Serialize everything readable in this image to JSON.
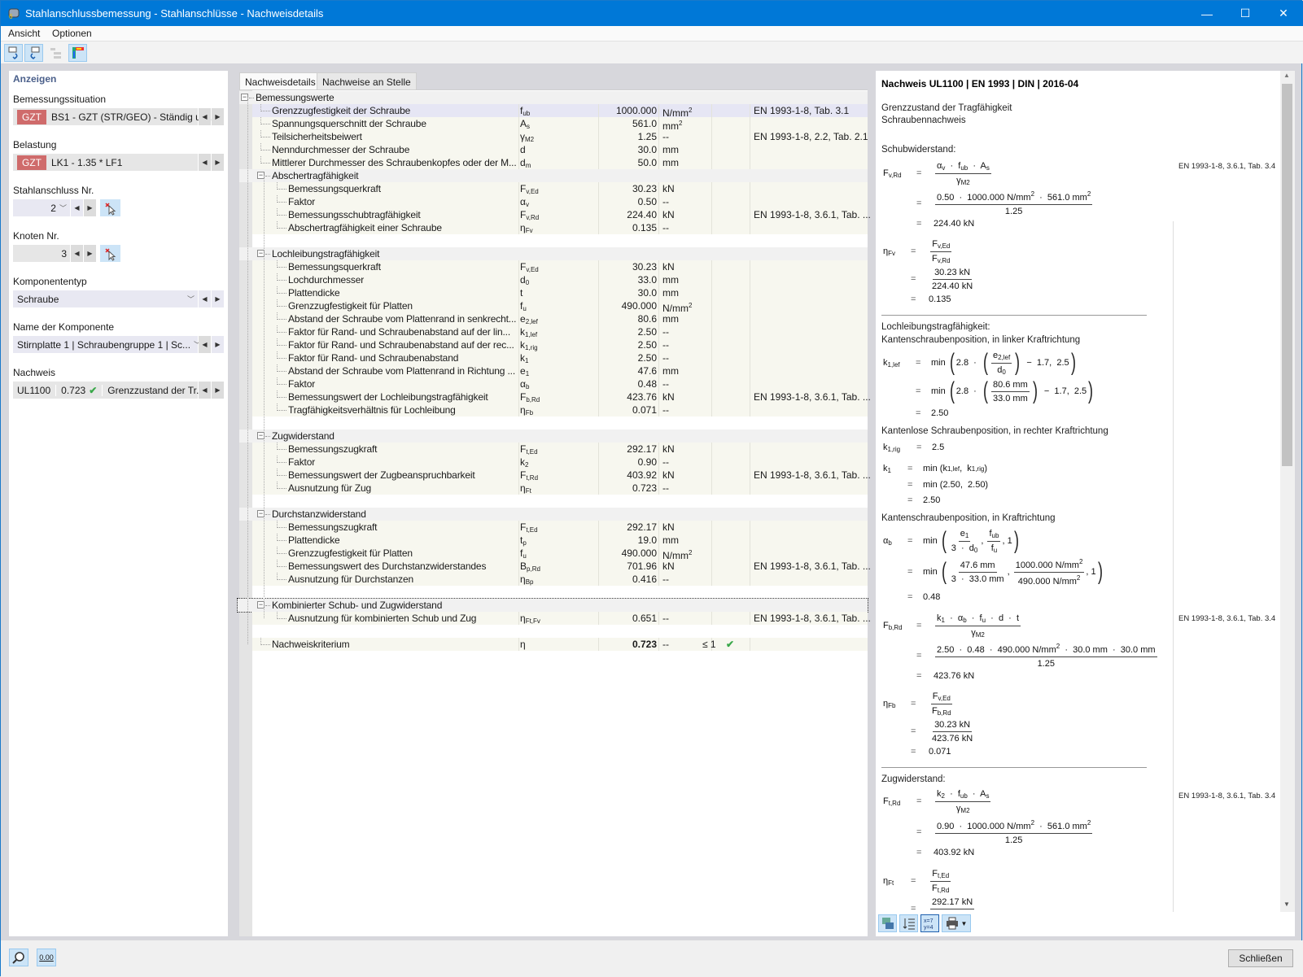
{
  "window": {
    "title": "Stahlanschlussbemessung - Stahlanschlüsse - Nachweisdetails",
    "minimize": "—",
    "maximize": "☐",
    "close": "✕"
  },
  "menu": [
    "Ansicht",
    "Optionen"
  ],
  "left": {
    "header": "Anzeigen",
    "situation_label": "Bemessungssituation",
    "situation_badge": "GZT",
    "situation_value": "BS1 - GZT (STR/GEO) - Ständig un...",
    "load_label": "Belastung",
    "load_badge": "GZT",
    "load_value": "LK1 - 1.35 * LF1",
    "connection_label": "Stahlanschluss Nr.",
    "connection_value": "2",
    "node_label": "Knoten Nr.",
    "node_value": "3",
    "comptype_label": "Komponententyp",
    "comptype_value": "Schraube",
    "compname_label": "Name der Komponente",
    "compname_value": "Stirnplatte 1 | Schraubengruppe 1 | Sc...",
    "check_label": "Nachweis",
    "check_id": "UL1100",
    "check_ratio": "0.723",
    "check_desc": "Grenzzustand der Tr..."
  },
  "tabs": [
    "Nachweisdetails",
    "Nachweise an Stelle"
  ],
  "table": [
    {
      "type": "group",
      "level": 0,
      "label": "Bemessungswerte"
    },
    {
      "type": "item",
      "level": 1,
      "label": "Grenzzugfestigkeit der Schraube",
      "sym": "f",
      "sub": "ub",
      "val": "1000.000",
      "unit": "N/mm",
      "sup": "2",
      "ref": "EN 1993-1-8, Tab. 3.1",
      "selected": true
    },
    {
      "type": "item",
      "level": 1,
      "label": "Spannungsquerschnitt der Schraube",
      "sym": "A",
      "sub": "s",
      "val": "561.0",
      "unit": "mm",
      "sup": "2"
    },
    {
      "type": "item",
      "level": 1,
      "label": "Teilsicherheitsbeiwert",
      "sym": "γ",
      "sub": "M2",
      "val": "1.25",
      "unit": "--",
      "ref": "EN 1993-1-8, 2.2, Tab. 2.1"
    },
    {
      "type": "item",
      "level": 1,
      "label": "Nenndurchmesser der Schraube",
      "sym": "d",
      "val": "30.0",
      "unit": "mm"
    },
    {
      "type": "item",
      "level": 1,
      "label": "Mittlerer Durchmesser des Schraubenkopfes oder der M...",
      "sym": "d",
      "sub": "m",
      "val": "50.0",
      "unit": "mm"
    },
    {
      "type": "group",
      "level": 1,
      "label": "Abschertragfähigkeit"
    },
    {
      "type": "item",
      "level": 2,
      "label": "Bemessungsquerkraft",
      "sym": "F",
      "sub": "v,Ed",
      "val": "30.23",
      "unit": "kN"
    },
    {
      "type": "item",
      "level": 2,
      "label": "Faktor",
      "sym": "α",
      "sub": "v",
      "val": "0.50",
      "unit": "--"
    },
    {
      "type": "item",
      "level": 2,
      "label": "Bemessungsschubtragfähigkeit",
      "sym": "F",
      "sub": "v,Rd",
      "val": "224.40",
      "unit": "kN",
      "ref": "EN 1993-1-8, 3.6.1, Tab. ..."
    },
    {
      "type": "item",
      "level": 2,
      "label": "Abschertragfähigkeit einer Schraube",
      "sym": "η",
      "sub": "Fv",
      "val": "0.135",
      "unit": "--"
    },
    {
      "type": "blank"
    },
    {
      "type": "group",
      "level": 1,
      "label": "Lochleibungstragfähigkeit"
    },
    {
      "type": "item",
      "level": 2,
      "label": "Bemessungsquerkraft",
      "sym": "F",
      "sub": "v,Ed",
      "val": "30.23",
      "unit": "kN"
    },
    {
      "type": "item",
      "level": 2,
      "label": "Lochdurchmesser",
      "sym": "d",
      "sub": "0",
      "val": "33.0",
      "unit": "mm"
    },
    {
      "type": "item",
      "level": 2,
      "label": "Plattendicke",
      "sym": "t",
      "val": "30.0",
      "unit": "mm"
    },
    {
      "type": "item",
      "level": 2,
      "label": "Grenzzugfestigkeit für Platten",
      "sym": "f",
      "sub": "u",
      "val": "490.000",
      "unit": "N/mm",
      "sup": "2"
    },
    {
      "type": "item",
      "level": 2,
      "label": "Abstand der Schraube vom Plattenrand in senkrecht...",
      "sym": "e",
      "sub": "2,lef",
      "val": "80.6",
      "unit": "mm"
    },
    {
      "type": "item",
      "level": 2,
      "label": "Faktor für Rand- und Schraubenabstand auf der lin...",
      "sym": "k",
      "sub": "1,lef",
      "val": "2.50",
      "unit": "--"
    },
    {
      "type": "item",
      "level": 2,
      "label": "Faktor für Rand- und Schraubenabstand auf der rec...",
      "sym": "k",
      "sub": "1,rig",
      "val": "2.50",
      "unit": "--"
    },
    {
      "type": "item",
      "level": 2,
      "label": "Faktor für Rand- und Schraubenabstand",
      "sym": "k",
      "sub": "1",
      "val": "2.50",
      "unit": "--"
    },
    {
      "type": "item",
      "level": 2,
      "label": "Abstand der Schraube vom Plattenrand in Richtung ...",
      "sym": "e",
      "sub": "1",
      "val": "47.6",
      "unit": "mm"
    },
    {
      "type": "item",
      "level": 2,
      "label": "Faktor",
      "sym": "α",
      "sub": "b",
      "val": "0.48",
      "unit": "--"
    },
    {
      "type": "item",
      "level": 2,
      "label": "Bemessungswert der Lochleibungstragfähigkeit",
      "sym": "F",
      "sub": "b,Rd",
      "val": "423.76",
      "unit": "kN",
      "ref": "EN 1993-1-8, 3.6.1, Tab. ..."
    },
    {
      "type": "item",
      "level": 2,
      "label": "Tragfähigkeitsverhältnis für Lochleibung",
      "sym": "η",
      "sub": "Fb",
      "val": "0.071",
      "unit": "--"
    },
    {
      "type": "blank"
    },
    {
      "type": "group",
      "level": 1,
      "label": "Zugwiderstand"
    },
    {
      "type": "item",
      "level": 2,
      "label": "Bemessungszugkraft",
      "sym": "F",
      "sub": "t,Ed",
      "val": "292.17",
      "unit": "kN"
    },
    {
      "type": "item",
      "level": 2,
      "label": "Faktor",
      "sym": "k",
      "sub": "2",
      "val": "0.90",
      "unit": "--"
    },
    {
      "type": "item",
      "level": 2,
      "label": "Bemessungswert der Zugbeanspruchbarkeit",
      "sym": "F",
      "sub": "t,Rd",
      "val": "403.92",
      "unit": "kN",
      "ref": "EN 1993-1-8, 3.6.1, Tab. ..."
    },
    {
      "type": "item",
      "level": 2,
      "label": "Ausnutzung für Zug",
      "sym": "η",
      "sub": "Ft",
      "val": "0.723",
      "unit": "--"
    },
    {
      "type": "blank"
    },
    {
      "type": "group",
      "level": 1,
      "label": "Durchstanzwiderstand"
    },
    {
      "type": "item",
      "level": 2,
      "label": "Bemessungszugkraft",
      "sym": "F",
      "sub": "t,Ed",
      "val": "292.17",
      "unit": "kN"
    },
    {
      "type": "item",
      "level": 2,
      "label": "Plattendicke",
      "sym": "t",
      "sub": "p",
      "val": "19.0",
      "unit": "mm"
    },
    {
      "type": "item",
      "level": 2,
      "label": "Grenzzugfestigkeit für Platten",
      "sym": "f",
      "sub": "u",
      "val": "490.000",
      "unit": "N/mm",
      "sup": "2"
    },
    {
      "type": "item",
      "level": 2,
      "label": "Bemessungswert des Durchstanzwiderstandes",
      "sym": "B",
      "sub": "p,Rd",
      "val": "701.96",
      "unit": "kN",
      "ref": "EN 1993-1-8, 3.6.1, Tab. ..."
    },
    {
      "type": "item",
      "level": 2,
      "label": "Ausnutzung für Durchstanzen",
      "sym": "η",
      "sub": "Bp",
      "val": "0.416",
      "unit": "--"
    },
    {
      "type": "blank"
    },
    {
      "type": "group",
      "level": 1,
      "label": "Kombinierter Schub- und Zugwiderstand",
      "focused": true
    },
    {
      "type": "item",
      "level": 2,
      "label": "Ausnutzung für kombinierten Schub und Zug",
      "sym": "η",
      "sub": "Ft,Fv",
      "val": "0.651",
      "unit": "--",
      "ref": "EN 1993-1-8, 3.6.1, Tab. ..."
    },
    {
      "type": "blank"
    },
    {
      "type": "item",
      "level": 1,
      "label": "Nachweiskriterium",
      "sym": "η",
      "val": "0.723",
      "unit": "--",
      "cond": "≤ 1",
      "check": true,
      "bold": true
    }
  ],
  "report": [
    {
      "type": "text",
      "bold": true,
      "text": "Nachweis UL1100 | EN 1993 | DIN | 2016-04"
    },
    {
      "type": "text",
      "text": "Grenzzustand der Tragfähigkeit"
    },
    {
      "type": "text",
      "text": "Schraubennachweis"
    },
    {
      "type": "text",
      "text": "Schubwiderstand:"
    },
    {
      "type": "eq",
      "lhs": [
        "F",
        {
          "s": "v,Rd"
        }
      ],
      "eq": "=",
      "rhs": [
        {
          "f": [
            [
              "α",
              {
                "s": "v"
              },
              "  ·  f",
              {
                "s": "ub"
              },
              "  ·  A",
              {
                "s": "s"
              }
            ],
            [
              "γ",
              {
                "s": "M2"
              }
            ]
          ]
        }
      ]
    },
    {
      "type": "ref",
      "text": "EN 1993-1-8, 3.6.1, Tab. 3.4"
    },
    {
      "type": "eq",
      "eq": "=",
      "rhs": [
        {
          "f": [
            [
              "0.50  ·  1000.000 N/mm",
              {
                "p": "2"
              },
              "  ·  561.0 mm",
              {
                "p": "2"
              }
            ],
            [
              "1.25"
            ]
          ]
        }
      ]
    },
    {
      "type": "eq",
      "eq": "=",
      "rhs": [
        "224.40 kN"
      ]
    },
    {
      "type": "eq",
      "lhs": [
        "η",
        {
          "s": "Fv"
        }
      ],
      "eq": "=",
      "rhs": [
        {
          "f": [
            [
              "F",
              {
                "s": "v,Ed"
              }
            ],
            [
              "F",
              {
                "s": "v,Rd"
              }
            ]
          ]
        }
      ]
    },
    {
      "type": "eq",
      "eq": "=",
      "rhs": [
        {
          "f": [
            [
              "30.23 kN"
            ],
            [
              "224.40 kN"
            ]
          ]
        }
      ]
    },
    {
      "type": "eq",
      "eq": "=",
      "rhs": [
        "0.135"
      ]
    },
    {
      "type": "rule"
    },
    {
      "type": "text",
      "text": "Lochleibungstragfähigkeit:"
    },
    {
      "type": "text",
      "text": "Kantenschraubenposition, in linker Kraftrichtung"
    },
    {
      "type": "eq",
      "lhs": [
        "k",
        {
          "s": "1,lef"
        }
      ],
      "eq": "=",
      "rhs": [
        "min ",
        {
          "br": [
            "2.8  ·  ",
            {
              "br": [
                {
                  "f": [
                    [
                      "e",
                      {
                        "s": "2,lef"
                      }
                    ],
                    [
                      "d",
                      {
                        "s": "0"
                      }
                    ]
                  ]
                }
              ]
            },
            "  −  1.7,  2.5"
          ]
        }
      ]
    },
    {
      "type": "eq",
      "eq": "=",
      "rhs": [
        "min ",
        {
          "br": [
            "2.8  ·  ",
            {
              "br": [
                {
                  "f": [
                    [
                      "80.6 mm"
                    ],
                    [
                      "33.0 mm"
                    ]
                  ]
                }
              ]
            },
            "  −  1.7,  2.5"
          ]
        }
      ]
    },
    {
      "type": "eq",
      "eq": "=",
      "rhs": [
        "2.50"
      ]
    },
    {
      "type": "text",
      "text": "Kantenlose Schraubenposition, in rechter Kraftrichtung"
    },
    {
      "type": "eq",
      "lhs": [
        "k",
        {
          "s": "1,rig"
        }
      ],
      "eq": "=",
      "rhs": [
        "2.5"
      ]
    },
    {
      "type": "eq",
      "lhs": [
        "k",
        {
          "s": "1"
        }
      ],
      "eq": "=",
      "rhs": [
        "min (k",
        {
          "s": "1,lef"
        },
        ",  k",
        {
          "s": "1,rig"
        },
        ")"
      ]
    },
    {
      "type": "eq",
      "eq": "=",
      "rhs": [
        "min (2.50,  2.50)"
      ]
    },
    {
      "type": "eq",
      "eq": "=",
      "rhs": [
        "2.50"
      ]
    },
    {
      "type": "text",
      "text": "Kantenschraubenposition, in Kraftrichtung"
    },
    {
      "type": "eq",
      "lhs": [
        "α",
        {
          "s": "b"
        }
      ],
      "eq": "=",
      "rhs": [
        "min ",
        {
          "br": [
            {
              "f": [
                [
                  "e",
                  {
                    "s": "1"
                  }
                ],
                [
                  "3  ·  d",
                  {
                    "s": "0"
                  }
                ]
              ]
            },
            ", ",
            {
              "f": [
                [
                  "f",
                  {
                    "s": "ub"
                  }
                ],
                [
                  "f",
                  {
                    "s": "u"
                  }
                ]
              ]
            },
            ", 1"
          ]
        }
      ]
    },
    {
      "type": "eq",
      "eq": "=",
      "rhs": [
        "min ",
        {
          "br": [
            {
              "f": [
                [
                  "47.6 mm"
                ],
                [
                  "3  ·  33.0 mm"
                ]
              ]
            },
            ", ",
            {
              "f": [
                [
                  "1000.000 N/mm",
                  {
                    "p": "2"
                  }
                ],
                [
                  "490.000 N/mm",
                  {
                    "p": "2"
                  }
                ]
              ]
            },
            ", 1"
          ]
        }
      ]
    },
    {
      "type": "eq",
      "eq": "=",
      "rhs": [
        "0.48"
      ]
    },
    {
      "type": "eq",
      "lhs": [
        "F",
        {
          "s": "b,Rd"
        }
      ],
      "eq": "=",
      "rhs": [
        {
          "f": [
            [
              "k",
              {
                "s": "1"
              },
              "  ·  α",
              {
                "s": "b"
              },
              "  ·  f",
              {
                "s": "u"
              },
              "  ·  d  ·  t"
            ],
            [
              "γ",
              {
                "s": "M2"
              }
            ]
          ]
        }
      ]
    },
    {
      "type": "ref",
      "text": "EN 1993-1-8, 3.6.1, Tab. 3.4"
    },
    {
      "type": "eq",
      "eq": "=",
      "rhs": [
        {
          "f": [
            [
              "2.50  ·  0.48  ·  490.000 N/mm",
              {
                "p": "2"
              },
              "  ·  30.0 mm  ·  30.0 mm"
            ],
            [
              "1.25"
            ]
          ]
        }
      ]
    },
    {
      "type": "eq",
      "eq": "=",
      "rhs": [
        "423.76 kN"
      ]
    },
    {
      "type": "eq",
      "lhs": [
        "η",
        {
          "s": "Fb"
        }
      ],
      "eq": "=",
      "rhs": [
        {
          "f": [
            [
              "F",
              {
                "s": "v,Ed"
              }
            ],
            [
              "F",
              {
                "s": "b,Rd"
              }
            ]
          ]
        }
      ]
    },
    {
      "type": "eq",
      "eq": "=",
      "rhs": [
        {
          "f": [
            [
              "30.23 kN"
            ],
            [
              "423.76 kN"
            ]
          ]
        }
      ]
    },
    {
      "type": "eq",
      "eq": "=",
      "rhs": [
        "0.071"
      ]
    },
    {
      "type": "rule"
    },
    {
      "type": "text",
      "text": "Zugwiderstand:"
    },
    {
      "type": "eq",
      "lhs": [
        "F",
        {
          "s": "t,Rd"
        }
      ],
      "eq": "=",
      "rhs": [
        {
          "f": [
            [
              "k",
              {
                "s": "2"
              },
              "  ·  f",
              {
                "s": "ub"
              },
              "  ·  A",
              {
                "s": "s"
              }
            ],
            [
              "γ",
              {
                "s": "M2"
              }
            ]
          ]
        }
      ]
    },
    {
      "type": "ref",
      "text": "EN 1993-1-8, 3.6.1, Tab. 3.4"
    },
    {
      "type": "eq",
      "eq": "=",
      "rhs": [
        {
          "f": [
            [
              "0.90  ·  1000.000 N/mm",
              {
                "p": "2"
              },
              "  ·  561.0 mm",
              {
                "p": "2"
              }
            ],
            [
              "1.25"
            ]
          ]
        }
      ]
    },
    {
      "type": "eq",
      "eq": "=",
      "rhs": [
        "403.92 kN"
      ]
    },
    {
      "type": "eq",
      "lhs": [
        "η",
        {
          "s": "Ft"
        }
      ],
      "eq": "=",
      "rhs": [
        {
          "f": [
            [
              "F",
              {
                "s": "t,Ed"
              }
            ],
            [
              "F",
              {
                "s": "t,Rd"
              }
            ]
          ]
        }
      ]
    },
    {
      "type": "eq",
      "eq": "=",
      "rhs": [
        {
          "f": [
            [
              "292.17 kN"
            ],
            [
              ""
            ]
          ]
        }
      ]
    }
  ],
  "footer": {
    "close_label": "Schließen",
    "status_icon2": "0.00"
  },
  "colors": {
    "titlebar": "#0078d7",
    "gzt_badge": "#cf6b6b",
    "check": "#3aa84a",
    "accent": "#cce4f7"
  },
  "icons": [
    "app-icon",
    "select-previous-icon",
    "select-next-icon",
    "tree-icon",
    "render-icon",
    "pick-icon",
    "export-image-icon",
    "list-icon",
    "formula-icon",
    "print-icon",
    "help-icon",
    "decimal-places-icon"
  ]
}
